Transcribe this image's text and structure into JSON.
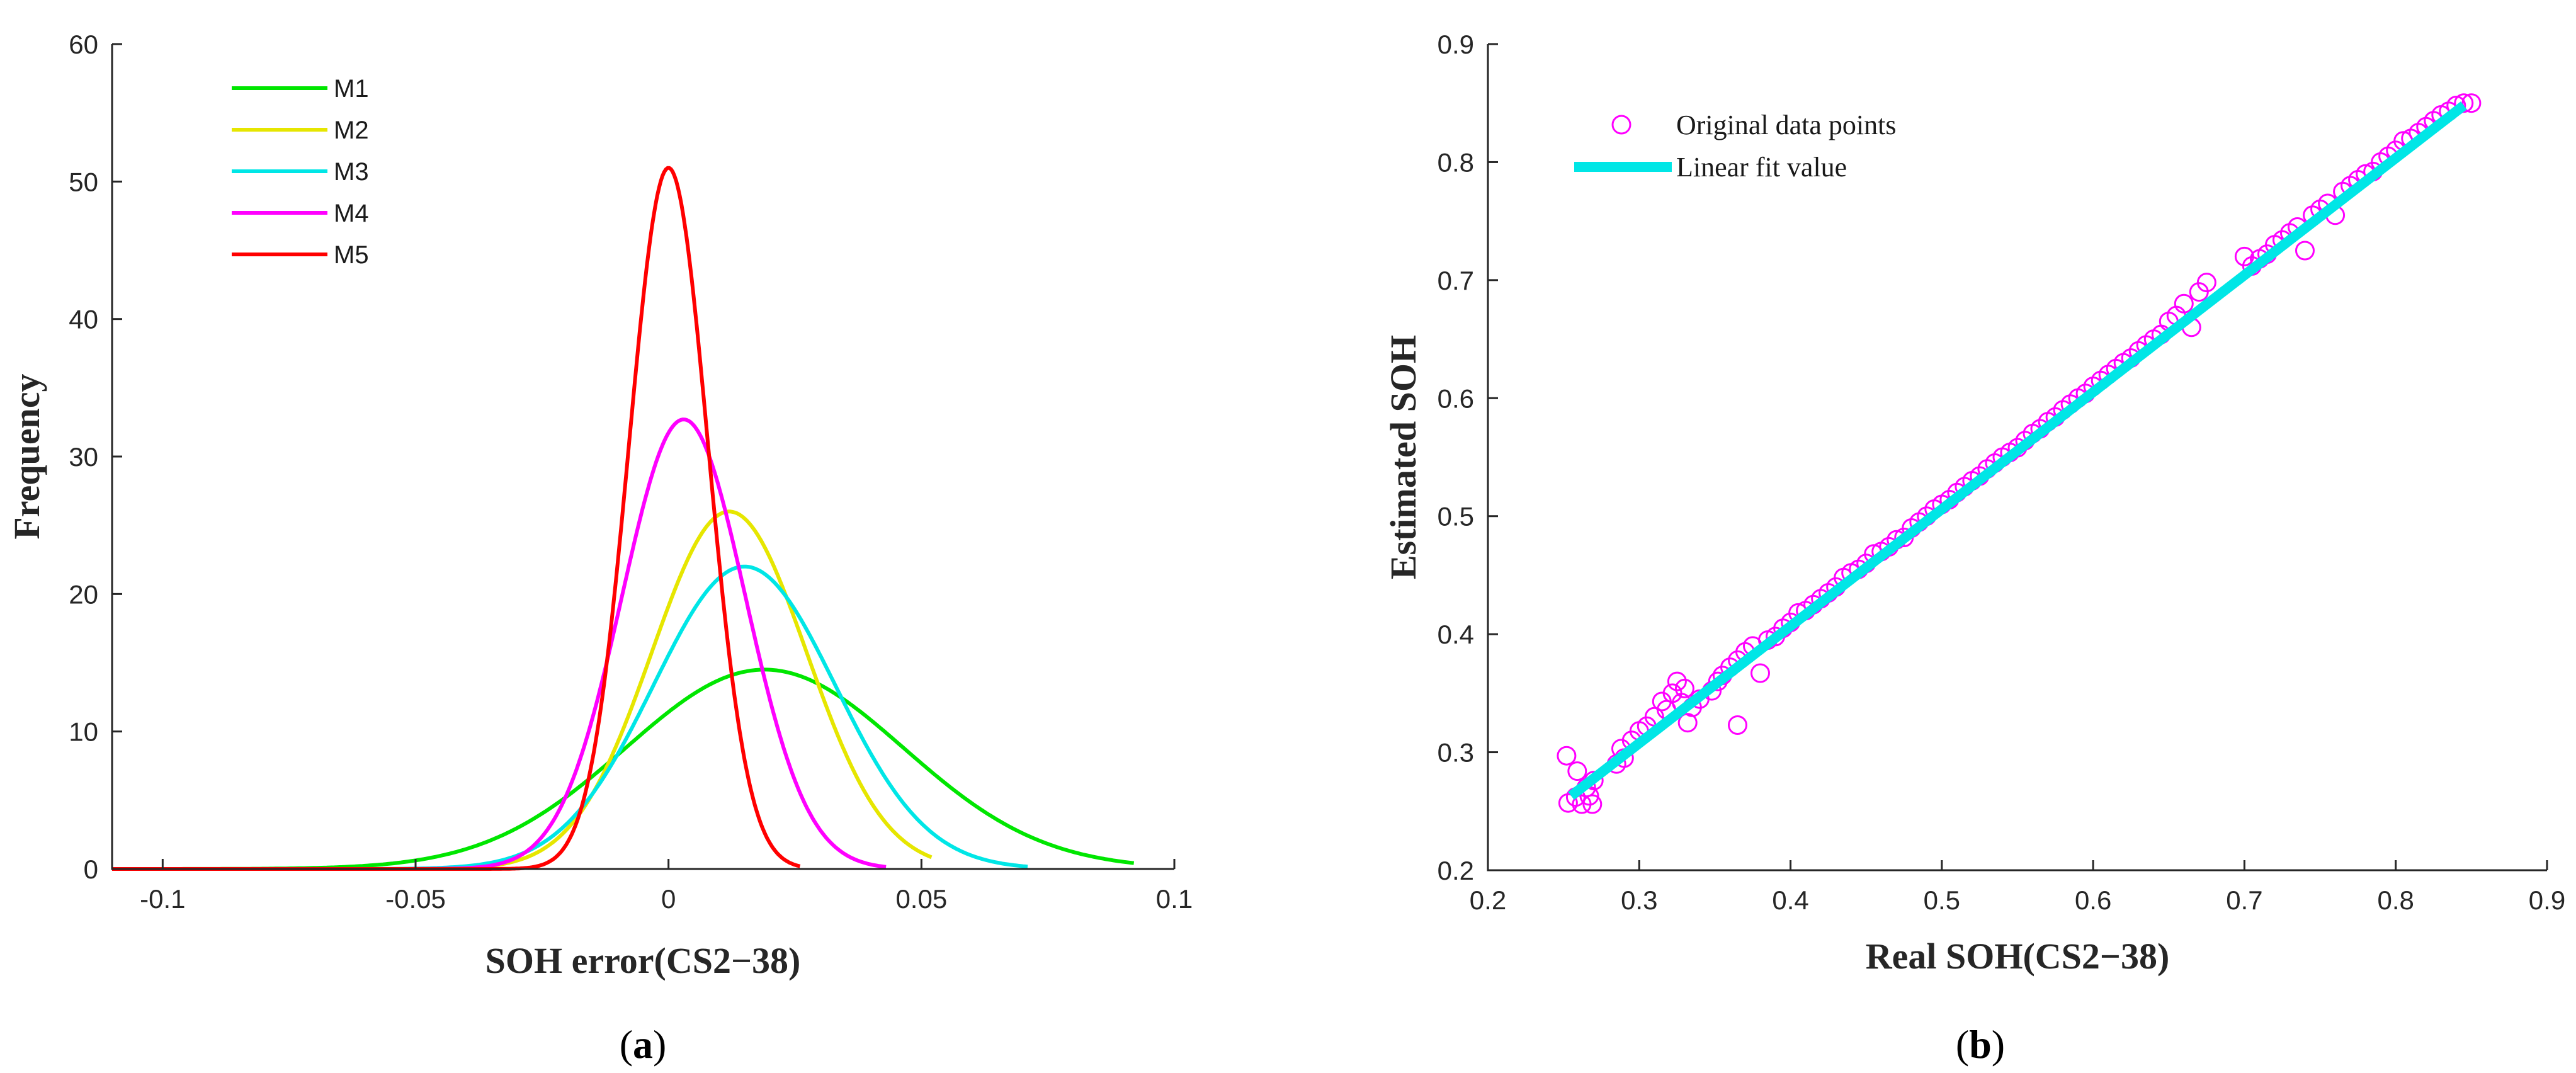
{
  "chart_data": [
    {
      "type": "line",
      "panel_label": "a",
      "xlabel": "SOH error(CS2−38)",
      "ylabel": "Frequency",
      "xlim": [
        -0.11,
        0.1
      ],
      "ylim": [
        0,
        60
      ],
      "xticks": [
        -0.1,
        -0.05,
        0,
        0.05,
        0.1
      ],
      "xtick_labels": [
        "-0.1",
        "-0.05",
        "0",
        "0.05",
        "0.1"
      ],
      "yticks": [
        0,
        10,
        20,
        30,
        40,
        50,
        60
      ],
      "ytick_labels": [
        "0",
        "10",
        "20",
        "30",
        "40",
        "50",
        "60"
      ],
      "legend_position": "top-left",
      "series": [
        {
          "name": "M1",
          "color": "#00e600",
          "mean": 0.019,
          "sd": 0.0275,
          "peak": 14.5,
          "x_start": -0.11,
          "x_end": 0.092
        },
        {
          "name": "M2",
          "color": "#e6e600",
          "mean": 0.012,
          "sd": 0.0153,
          "peak": 26.0,
          "x_start": -0.11,
          "x_end": 0.052
        },
        {
          "name": "M3",
          "color": "#00e6e6",
          "mean": 0.015,
          "sd": 0.018,
          "peak": 22.0,
          "x_start": -0.11,
          "x_end": 0.071
        },
        {
          "name": "M4",
          "color": "#ff00ff",
          "mean": 0.003,
          "sd": 0.0122,
          "peak": 32.7,
          "x_start": -0.11,
          "x_end": 0.043
        },
        {
          "name": "M5",
          "color": "#ff0000",
          "mean": 0.0,
          "sd": 0.0078,
          "peak": 51.0,
          "x_start": -0.11,
          "x_end": 0.026
        }
      ]
    },
    {
      "type": "scatter",
      "panel_label": "b",
      "xlabel": "Real SOH(CS2−38)",
      "ylabel": "Estimated SOH",
      "xlim": [
        0.2,
        0.9
      ],
      "ylim": [
        0.2,
        0.9
      ],
      "xticks": [
        0.2,
        0.3,
        0.4,
        0.5,
        0.6,
        0.7,
        0.8,
        0.9
      ],
      "xtick_labels": [
        "0.2",
        "0.3",
        "0.4",
        "0.5",
        "0.6",
        "0.7",
        "0.8",
        "0.9"
      ],
      "yticks": [
        0.2,
        0.3,
        0.4,
        0.5,
        0.6,
        0.7,
        0.8,
        0.9
      ],
      "ytick_labels": [
        "0.2",
        "0.3",
        "0.4",
        "0.5",
        "0.6",
        "0.7",
        "0.8",
        "0.9"
      ],
      "legend_position": "top-left",
      "legend": [
        "Original data points",
        "Linear fit value"
      ],
      "marker_color": "#ff00ff",
      "fit_color": "#00e6e6",
      "fit_line": {
        "x": [
          0.255,
          0.845
        ],
        "y": [
          0.263,
          0.848
        ]
      },
      "points": [
        [
          0.252,
          0.297
        ],
        [
          0.253,
          0.257
        ],
        [
          0.258,
          0.262
        ],
        [
          0.259,
          0.284
        ],
        [
          0.262,
          0.256
        ],
        [
          0.265,
          0.27
        ],
        [
          0.267,
          0.263
        ],
        [
          0.269,
          0.256
        ],
        [
          0.27,
          0.276
        ],
        [
          0.285,
          0.29
        ],
        [
          0.288,
          0.303
        ],
        [
          0.29,
          0.295
        ],
        [
          0.295,
          0.31
        ],
        [
          0.3,
          0.318
        ],
        [
          0.305,
          0.322
        ],
        [
          0.31,
          0.33
        ],
        [
          0.315,
          0.343
        ],
        [
          0.318,
          0.336
        ],
        [
          0.322,
          0.35
        ],
        [
          0.325,
          0.36
        ],
        [
          0.328,
          0.342
        ],
        [
          0.33,
          0.354
        ],
        [
          0.332,
          0.325
        ],
        [
          0.335,
          0.338
        ],
        [
          0.34,
          0.345
        ],
        [
          0.348,
          0.352
        ],
        [
          0.352,
          0.36
        ],
        [
          0.355,
          0.365
        ],
        [
          0.36,
          0.372
        ],
        [
          0.365,
          0.323
        ],
        [
          0.365,
          0.378
        ],
        [
          0.37,
          0.385
        ],
        [
          0.375,
          0.39
        ],
        [
          0.38,
          0.367
        ],
        [
          0.385,
          0.395
        ],
        [
          0.39,
          0.398
        ],
        [
          0.395,
          0.405
        ],
        [
          0.4,
          0.41
        ],
        [
          0.405,
          0.418
        ],
        [
          0.41,
          0.42
        ],
        [
          0.415,
          0.425
        ],
        [
          0.42,
          0.43
        ],
        [
          0.425,
          0.435
        ],
        [
          0.43,
          0.44
        ],
        [
          0.435,
          0.448
        ],
        [
          0.44,
          0.452
        ],
        [
          0.445,
          0.455
        ],
        [
          0.45,
          0.46
        ],
        [
          0.455,
          0.468
        ],
        [
          0.46,
          0.47
        ],
        [
          0.465,
          0.474
        ],
        [
          0.47,
          0.48
        ],
        [
          0.475,
          0.482
        ],
        [
          0.48,
          0.49
        ],
        [
          0.485,
          0.495
        ],
        [
          0.49,
          0.5
        ],
        [
          0.495,
          0.506
        ],
        [
          0.5,
          0.51
        ],
        [
          0.505,
          0.514
        ],
        [
          0.51,
          0.52
        ],
        [
          0.515,
          0.525
        ],
        [
          0.52,
          0.53
        ],
        [
          0.525,
          0.534
        ],
        [
          0.53,
          0.54
        ],
        [
          0.535,
          0.545
        ],
        [
          0.54,
          0.55
        ],
        [
          0.545,
          0.554
        ],
        [
          0.55,
          0.558
        ],
        [
          0.555,
          0.564
        ],
        [
          0.56,
          0.57
        ],
        [
          0.565,
          0.574
        ],
        [
          0.57,
          0.58
        ],
        [
          0.575,
          0.584
        ],
        [
          0.58,
          0.59
        ],
        [
          0.585,
          0.595
        ],
        [
          0.59,
          0.6
        ],
        [
          0.595,
          0.604
        ],
        [
          0.6,
          0.61
        ],
        [
          0.605,
          0.615
        ],
        [
          0.61,
          0.62
        ],
        [
          0.615,
          0.625
        ],
        [
          0.62,
          0.63
        ],
        [
          0.625,
          0.634
        ],
        [
          0.63,
          0.64
        ],
        [
          0.635,
          0.645
        ],
        [
          0.64,
          0.65
        ],
        [
          0.645,
          0.654
        ],
        [
          0.65,
          0.665
        ],
        [
          0.655,
          0.67
        ],
        [
          0.66,
          0.68
        ],
        [
          0.665,
          0.66
        ],
        [
          0.67,
          0.69
        ],
        [
          0.675,
          0.698
        ],
        [
          0.7,
          0.72
        ],
        [
          0.705,
          0.712
        ],
        [
          0.71,
          0.718
        ],
        [
          0.715,
          0.722
        ],
        [
          0.72,
          0.73
        ],
        [
          0.725,
          0.734
        ],
        [
          0.73,
          0.74
        ],
        [
          0.735,
          0.745
        ],
        [
          0.74,
          0.725
        ],
        [
          0.745,
          0.755
        ],
        [
          0.75,
          0.76
        ],
        [
          0.755,
          0.765
        ],
        [
          0.76,
          0.755
        ],
        [
          0.765,
          0.775
        ],
        [
          0.77,
          0.78
        ],
        [
          0.775,
          0.785
        ],
        [
          0.78,
          0.79
        ],
        [
          0.785,
          0.792
        ],
        [
          0.79,
          0.8
        ],
        [
          0.795,
          0.805
        ],
        [
          0.8,
          0.81
        ],
        [
          0.805,
          0.818
        ],
        [
          0.81,
          0.82
        ],
        [
          0.815,
          0.825
        ],
        [
          0.82,
          0.83
        ],
        [
          0.825,
          0.835
        ],
        [
          0.83,
          0.84
        ],
        [
          0.835,
          0.843
        ],
        [
          0.84,
          0.848
        ],
        [
          0.845,
          0.85
        ],
        [
          0.85,
          0.85
        ]
      ]
    }
  ]
}
